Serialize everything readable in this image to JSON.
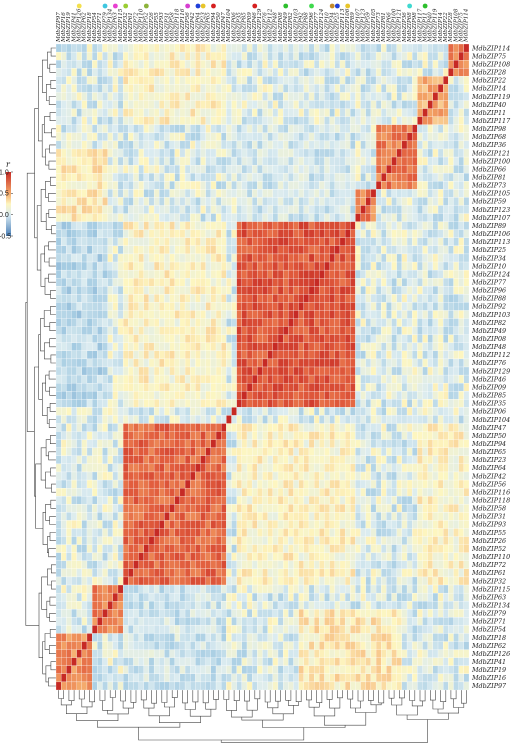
{
  "chart_data": {
    "type": "heatmap",
    "title": "",
    "value_label": "r",
    "color_range": [
      -0.5,
      1.0
    ],
    "legend": {
      "title": "r",
      "ticks": [
        1.0,
        0.5,
        0.0,
        -0.5
      ],
      "tick_labels": [
        "1.0",
        "0.5",
        "0.0",
        "-0.5"
      ],
      "placement": "left"
    },
    "colors": {
      "high": "#c62a25",
      "mid_high": "#f4a869",
      "mid": "#fdf6c0",
      "low": "#a7cde3",
      "lowest": "#4a7fb7"
    },
    "rows": [
      "MdbZIP114",
      "MdbZIP75",
      "MdbZIP108",
      "MdbZIP28",
      "MdbZIP22",
      "MdbZIP14",
      "MdbZIP119",
      "MdbZIP40",
      "MdbZIP11",
      "MdbZIP117",
      "MdbZIP98",
      "MdbZIP68",
      "MdbZIP36",
      "MdbZIP121",
      "MdbZIP100",
      "MdbZIP66",
      "MdbZIP81",
      "MdbZIP73",
      "MdbZIP105",
      "MdbZIP59",
      "MdbZIP123",
      "MdbZIP107",
      "MdbZIP89",
      "MdbZIP106",
      "MdbZIP113",
      "MdbZIP25",
      "MdbZIP34",
      "MdbZIP10",
      "MdbZIP124",
      "MdbZIP77",
      "MdbZIP96",
      "MdbZIP88",
      "MdbZIP92",
      "MdbZIP103",
      "MdbZIP82",
      "MdbZIP49",
      "MdbZIP08",
      "MdbZIP48",
      "MdbZIP112",
      "MdbZIP76",
      "MdbZIP129",
      "MdbZIP46",
      "MdbZIP09",
      "MdbZIP85",
      "MdbZIP35",
      "MdbZIP06",
      "MdbZIP104",
      "MdbZIP47",
      "MdbZIP50",
      "MdbZIP94",
      "MdbZIP65",
      "MdbZIP23",
      "MdbZIP64",
      "MdbZIP42",
      "MdbZIP56",
      "MdbZIP116",
      "MdbZIP118",
      "MdbZIP58",
      "MdbZIP31",
      "MdbZIP93",
      "MdbZIP55",
      "MdbZIP26",
      "MdbZIP52",
      "MdbZIP110",
      "MdbZIP72",
      "MdbZIP61",
      "MdbZIP32",
      "MdbZIP115",
      "MdbZIP63",
      "MdbZIP134",
      "MdbZIP79",
      "MdbZIP71",
      "MdbZIP54",
      "MdbZIP18",
      "MdbZIP62",
      "MdbZIP126",
      "MdbZIP41",
      "MdbZIP19",
      "MdbZIP16",
      "MdbZIP97"
    ],
    "columns": [
      "MdbZIP97",
      "MdbZIP16",
      "MdbZIP19",
      "MdbZIP41",
      "MdbZIP126",
      "MdbZIP62",
      "MdbZIP18",
      "MdbZIP54",
      "MdbZIP71",
      "MdbZIP79",
      "MdbZIP134",
      "MdbZIP63",
      "MdbZIP115",
      "MdbZIP32",
      "MdbZIP61",
      "MdbZIP72",
      "MdbZIP110",
      "MdbZIP52",
      "MdbZIP26",
      "MdbZIP55",
      "MdbZIP93",
      "MdbZIP31",
      "MdbZIP58",
      "MdbZIP118",
      "MdbZIP116",
      "MdbZIP56",
      "MdbZIP42",
      "MdbZIP64",
      "MdbZIP23",
      "MdbZIP65",
      "MdbZIP94",
      "MdbZIP50",
      "MdbZIP47",
      "MdbZIP104",
      "MdbZIP06",
      "MdbZIP35",
      "MdbZIP85",
      "MdbZIP09",
      "MdbZIP46",
      "MdbZIP129",
      "MdbZIP76",
      "MdbZIP112",
      "MdbZIP48",
      "MdbZIP08",
      "MdbZIP49",
      "MdbZIP82",
      "MdbZIP103",
      "MdbZIP92",
      "MdbZIP88",
      "MdbZIP96",
      "MdbZIP77",
      "MdbZIP124",
      "MdbZIP10",
      "MdbZIP34",
      "MdbZIP25",
      "MdbZIP113",
      "MdbZIP106",
      "MdbZIP89",
      "MdbZIP107",
      "MdbZIP123",
      "MdbZIP59",
      "MdbZIP105",
      "MdbZIP73",
      "MdbZIP81",
      "MdbZIP66",
      "MdbZIP100",
      "MdbZIP121",
      "MdbZIP36",
      "MdbZIP68",
      "MdbZIP98",
      "MdbZIP117",
      "MdbZIP11",
      "MdbZIP40",
      "MdbZIP119",
      "MdbZIP14",
      "MdbZIP22",
      "MdbZIP28",
      "MdbZIP108",
      "MdbZIP75",
      "MdbZIP114"
    ],
    "column_markers": [
      {
        "column_index": 4,
        "color": "#f4e04d"
      },
      {
        "column_index": 9,
        "color": "#3fc7e0"
      },
      {
        "column_index": 11,
        "color": "#e83fd1"
      },
      {
        "column_index": 13,
        "color": "#9acd32"
      },
      {
        "column_index": 17,
        "color": "#8db33a"
      },
      {
        "column_index": 25,
        "color": "#d63fd0"
      },
      {
        "column_index": 27,
        "color": "#1f3fd9"
      },
      {
        "column_index": 28,
        "color": "#e8c52a"
      },
      {
        "column_index": 30,
        "color": "#d62020"
      },
      {
        "column_index": 38,
        "color": "#d62020"
      },
      {
        "column_index": 44,
        "color": "#2dbf2d"
      },
      {
        "column_index": 49,
        "color": "#3fd94d"
      },
      {
        "column_index": 53,
        "color": "#c48a2a"
      },
      {
        "column_index": 54,
        "color": "#1f3fd9"
      },
      {
        "column_index": 56,
        "color": "#e8c52a"
      },
      {
        "column_index": 68,
        "color": "#3fd9d0"
      },
      {
        "column_index": 71,
        "color": "#2dbf2d"
      }
    ],
    "blocks": [
      {
        "rows": [
          22,
          44
        ],
        "cols": [
          35,
          57
        ],
        "r": 0.92
      },
      {
        "rows": [
          47,
          66
        ],
        "cols": [
          13,
          32
        ],
        "r": 0.85
      },
      {
        "rows": [
          47,
          52
        ],
        "cols": [
          13,
          20
        ],
        "r": 0.8
      },
      {
        "rows": [
          10,
          17
        ],
        "cols": [
          62,
          69
        ],
        "r": 0.78
      },
      {
        "rows": [
          0,
          3
        ],
        "cols": [
          76,
          79
        ],
        "r": 0.75
      },
      {
        "rows": [
          18,
          21
        ],
        "cols": [
          58,
          61
        ],
        "r": 0.75
      },
      {
        "rows": [
          67,
          72
        ],
        "cols": [
          7,
          12
        ],
        "r": 0.75
      },
      {
        "rows": [
          73,
          79
        ],
        "cols": [
          0,
          6
        ],
        "r": 0.72
      },
      {
        "rows": [
          4,
          9
        ],
        "cols": [
          70,
          75
        ],
        "r": 0.6
      },
      {
        "rows": [
          22,
          44
        ],
        "cols": [
          13,
          32
        ],
        "r": 0.35
      },
      {
        "rows": [
          47,
          66
        ],
        "cols": [
          35,
          57
        ],
        "r": 0.3
      },
      {
        "rows": [
          0,
          9
        ],
        "cols": [
          13,
          32
        ],
        "r": 0.35
      },
      {
        "rows": [
          13,
          32
        ],
        "cols": [
          0,
          9
        ],
        "r": 0.4
      }
    ]
  }
}
